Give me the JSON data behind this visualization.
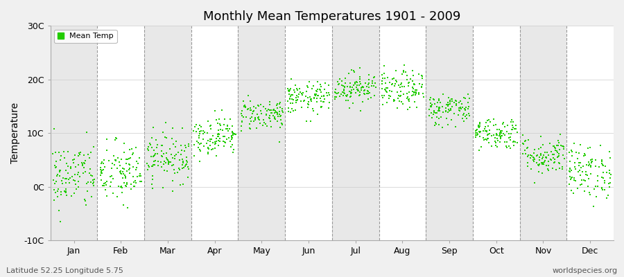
{
  "title": "Monthly Mean Temperatures 1901 - 2009",
  "ylabel": "Temperature",
  "xlabel_months": [
    "Jan",
    "Feb",
    "Mar",
    "Apr",
    "May",
    "Jun",
    "Jul",
    "Aug",
    "Sep",
    "Oct",
    "Nov",
    "Dec"
  ],
  "ylim": [
    -10,
    30
  ],
  "yticks": [
    -10,
    0,
    10,
    20,
    30
  ],
  "ytick_labels": [
    "-10C",
    "0C",
    "10C",
    "20C",
    "30C"
  ],
  "dot_color": "#22cc00",
  "dot_size": 3,
  "fig_bg_color": "#f0f0f0",
  "plot_bg_color": "#ffffff",
  "alt_band_color": "#e8e8e8",
  "grid_color": "#999999",
  "subtitle_left": "Latitude 52.25 Longitude 5.75",
  "subtitle_right": "worldspecies.org",
  "legend_label": "Mean Temp",
  "monthly_means": [
    2.0,
    2.5,
    5.5,
    9.5,
    13.5,
    16.5,
    18.5,
    18.0,
    14.5,
    10.0,
    5.8,
    2.8
  ],
  "monthly_stds": [
    3.2,
    3.0,
    2.3,
    1.8,
    1.5,
    1.5,
    1.5,
    1.8,
    1.5,
    1.5,
    1.8,
    2.5
  ],
  "n_years": 109,
  "seed": 42
}
